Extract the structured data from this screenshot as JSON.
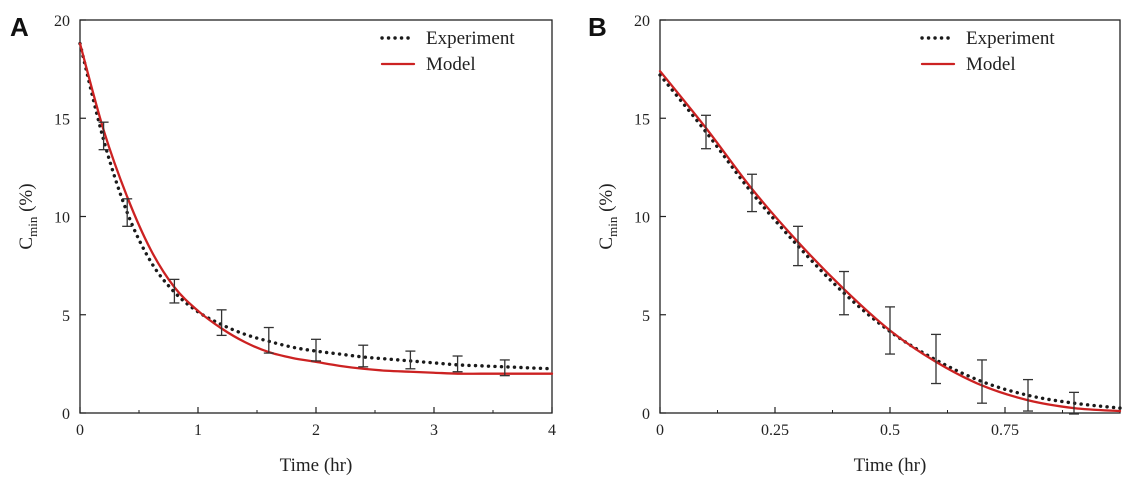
{
  "colors": {
    "experiment": "#1a1a1a",
    "model": "#cc2222",
    "axis": "#222222"
  },
  "chart_data": [
    {
      "panel": "A",
      "type": "line",
      "xlabel": "Time (hr)",
      "ylabel_main": "C",
      "ylabel_sub": "min",
      "ylabel_unit": " (%)",
      "xlim": [
        0,
        4
      ],
      "ylim": [
        0,
        20
      ],
      "xticks": [
        0,
        1,
        2,
        3,
        4
      ],
      "xtick_labels": [
        "0",
        "1",
        "2",
        "3",
        "4"
      ],
      "yticks": [
        0,
        5,
        10,
        15,
        20
      ],
      "ytick_labels": [
        "0",
        "5",
        "10",
        "15",
        "20"
      ],
      "legend": {
        "placement": "top-right",
        "entries": [
          "Experiment",
          "Model"
        ]
      },
      "series": [
        {
          "name": "Experiment",
          "style": "dotted",
          "x": [
            0,
            0.2,
            0.4,
            0.6,
            0.8,
            1.0,
            1.2,
            1.4,
            1.6,
            1.8,
            2.0,
            2.2,
            2.4,
            2.6,
            2.8,
            3.0,
            3.2,
            3.4,
            3.6,
            3.8,
            4.0
          ],
          "y": [
            18.8,
            13.9,
            10.2,
            7.7,
            6.15,
            5.15,
            4.5,
            4.0,
            3.65,
            3.35,
            3.15,
            3.0,
            2.85,
            2.75,
            2.65,
            2.55,
            2.45,
            2.4,
            2.35,
            2.3,
            2.25
          ]
        },
        {
          "name": "Model",
          "style": "solid",
          "x": [
            0,
            0.2,
            0.4,
            0.6,
            0.8,
            1.0,
            1.2,
            1.4,
            1.6,
            1.8,
            2.0,
            2.2,
            2.4,
            2.6,
            2.8,
            3.0,
            3.2,
            3.4,
            3.6,
            3.8,
            4.0
          ],
          "y": [
            18.8,
            14.4,
            11.0,
            8.3,
            6.4,
            5.2,
            4.3,
            3.6,
            3.1,
            2.8,
            2.6,
            2.4,
            2.25,
            2.15,
            2.1,
            2.05,
            2.0,
            2.0,
            2.0,
            2.0,
            2.0
          ]
        }
      ],
      "error_bars": {
        "x": [
          0.2,
          0.4,
          0.8,
          1.2,
          1.6,
          2.0,
          2.4,
          2.8,
          3.2,
          3.6
        ],
        "y": [
          14.1,
          10.2,
          6.2,
          4.6,
          3.7,
          3.2,
          2.9,
          2.7,
          2.5,
          2.3
        ],
        "err": [
          0.7,
          0.7,
          0.6,
          0.65,
          0.65,
          0.55,
          0.55,
          0.45,
          0.4,
          0.4
        ]
      }
    },
    {
      "panel": "B",
      "type": "line",
      "xlabel": "Time (hr)",
      "ylabel_main": "C",
      "ylabel_sub": "min",
      "ylabel_unit": " (%)",
      "xlim": [
        0,
        1
      ],
      "ylim": [
        0,
        20
      ],
      "xticks": [
        0,
        0.25,
        0.5,
        0.75
      ],
      "xtick_labels": [
        "0",
        "0.25",
        "0.5",
        "0.75"
      ],
      "yticks": [
        0,
        5,
        10,
        15,
        20
      ],
      "ytick_labels": [
        "0",
        "5",
        "10",
        "15",
        "20"
      ],
      "legend": {
        "placement": "top-right",
        "entries": [
          "Experiment",
          "Model"
        ]
      },
      "series": [
        {
          "name": "Experiment",
          "style": "dotted",
          "x": [
            0,
            0.1,
            0.2,
            0.3,
            0.4,
            0.5,
            0.6,
            0.7,
            0.8,
            0.9,
            1.0
          ],
          "y": [
            17.2,
            14.3,
            11.2,
            8.5,
            6.1,
            4.15,
            2.7,
            1.6,
            0.9,
            0.5,
            0.25
          ]
        },
        {
          "name": "Model",
          "style": "solid",
          "x": [
            0,
            0.1,
            0.2,
            0.3,
            0.4,
            0.5,
            0.6,
            0.7,
            0.8,
            0.9,
            1.0
          ],
          "y": [
            17.4,
            14.5,
            11.4,
            8.7,
            6.3,
            4.2,
            2.6,
            1.4,
            0.65,
            0.25,
            0.1
          ]
        }
      ],
      "error_bars": {
        "x": [
          0.1,
          0.2,
          0.3,
          0.4,
          0.5,
          0.6,
          0.7,
          0.8,
          0.9
        ],
        "y": [
          14.3,
          11.2,
          8.5,
          6.1,
          4.2,
          2.75,
          1.6,
          0.9,
          0.5
        ],
        "err": [
          0.85,
          0.95,
          1.0,
          1.1,
          1.2,
          1.25,
          1.1,
          0.8,
          0.55
        ]
      }
    }
  ]
}
